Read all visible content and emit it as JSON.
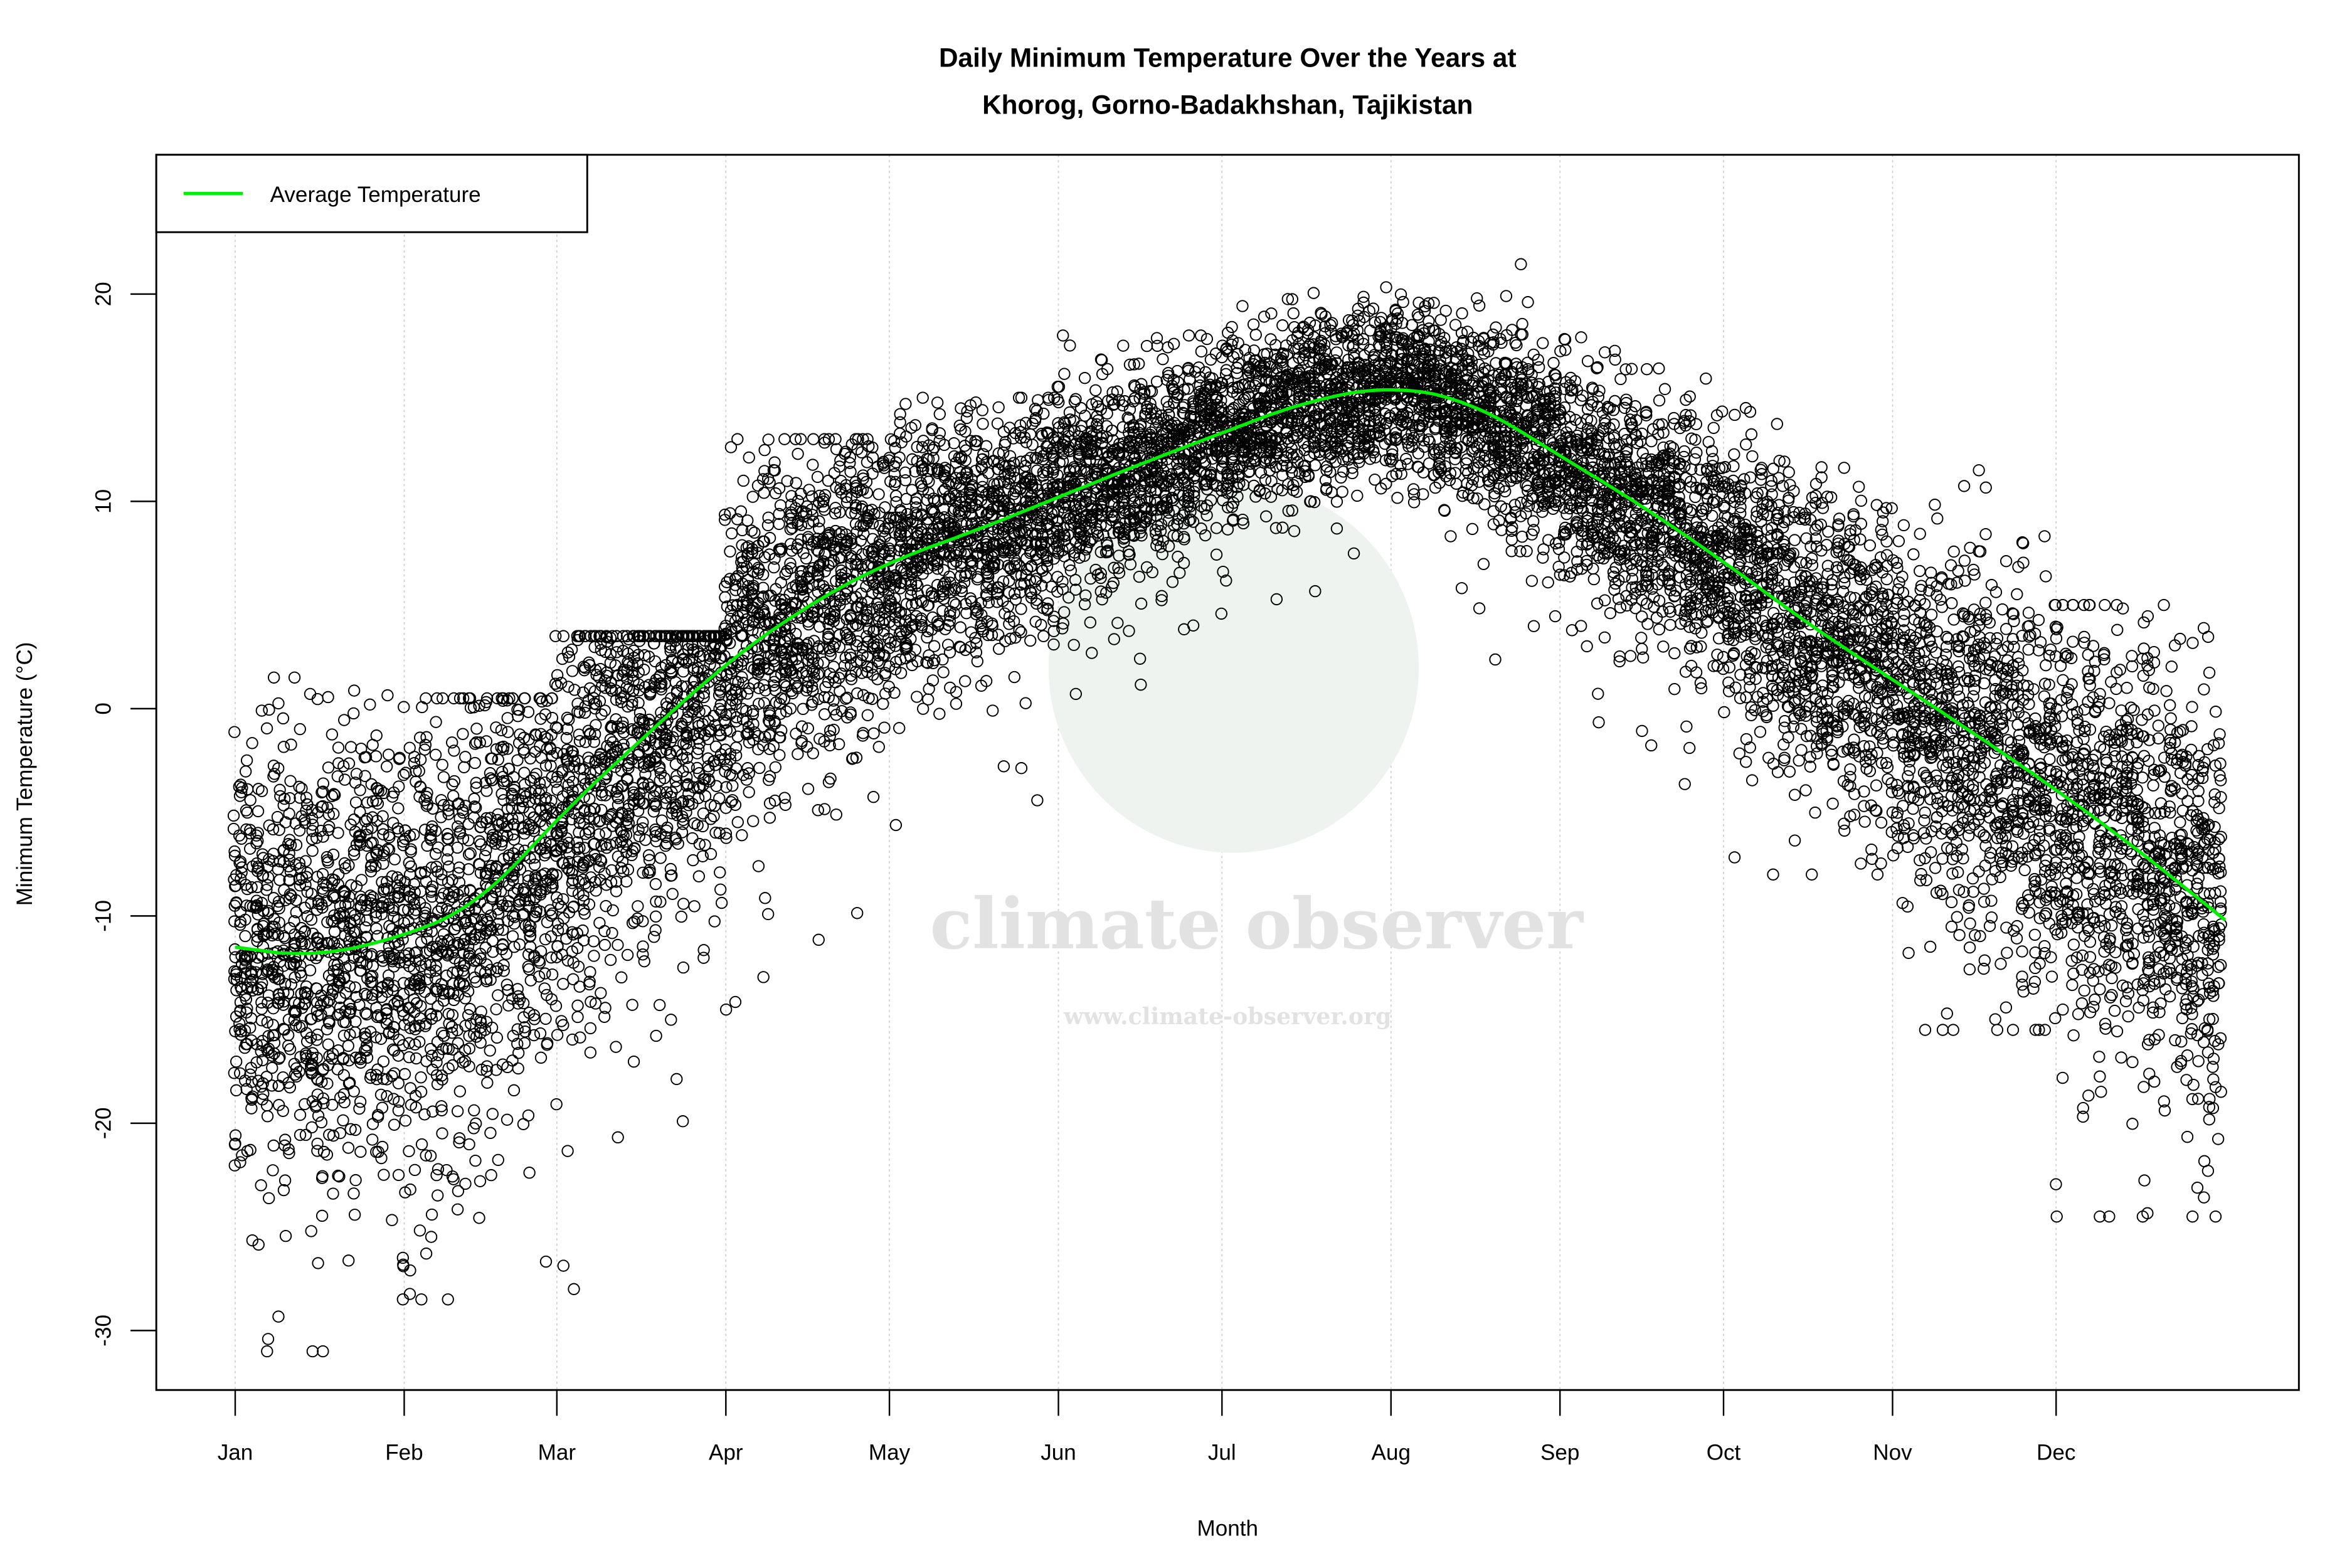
{
  "chart_data": {
    "type": "scatter",
    "title": "Daily Minimum Temperature Over the Years at",
    "subtitle": "Khorog, Gorno-Badakhshan, Tajikistan",
    "xlabel": "Month",
    "ylabel": "Minimum Temperature (°C)",
    "x_tick_labels": [
      "Jan",
      "Feb",
      "Mar",
      "Apr",
      "May",
      "Jun",
      "Jul",
      "Aug",
      "Sep",
      "Oct",
      "Nov",
      "Dec"
    ],
    "x_tick_days": [
      1,
      32,
      60,
      91,
      121,
      152,
      182,
      213,
      244,
      274,
      305,
      335
    ],
    "xlim_days": [
      1,
      366
    ],
    "y_ticks": [
      -30,
      -20,
      -10,
      0,
      10,
      20
    ],
    "ylim": [
      -33,
      26
    ],
    "grid": "vertical dotted at month ticks",
    "legend": {
      "position": "top-left",
      "entries": [
        {
          "label": "Average Temperature",
          "color": "#00ee00"
        }
      ]
    },
    "series": [
      {
        "name": "Average Temperature",
        "kind": "line",
        "color": "#00ee00",
        "day": [
          1,
          15,
          32,
          46,
          60,
          75,
          91,
          106,
          121,
          136,
          152,
          167,
          182,
          197,
          213,
          228,
          244,
          259,
          274,
          290,
          305,
          320,
          335,
          350,
          366
        ],
        "values": [
          -11.5,
          -12.0,
          -11.0,
          -9.4,
          -5.3,
          -1.6,
          2.2,
          5.0,
          7.1,
          8.5,
          10.2,
          11.8,
          13.3,
          14.8,
          15.6,
          14.8,
          12.2,
          9.8,
          7.1,
          4.0,
          1.4,
          -1.2,
          -3.9,
          -6.8,
          -10.2
        ]
      },
      {
        "kind": "scatter",
        "marker": "open circle",
        "color": "#000000",
        "monthly_min": [
          -31,
          -28.5,
          -28,
          -20.5,
          -8,
          -5,
          -1,
          0.5,
          -4,
          -8,
          -15.5,
          -24.5
        ],
        "monthly_max": [
          1.5,
          0.5,
          3.5,
          13,
          15,
          18,
          22,
          24.5,
          21,
          14.5,
          11.5,
          5
        ]
      }
    ]
  },
  "watermark": {
    "name": "climate observer",
    "url": "www.climate-observer.org"
  }
}
